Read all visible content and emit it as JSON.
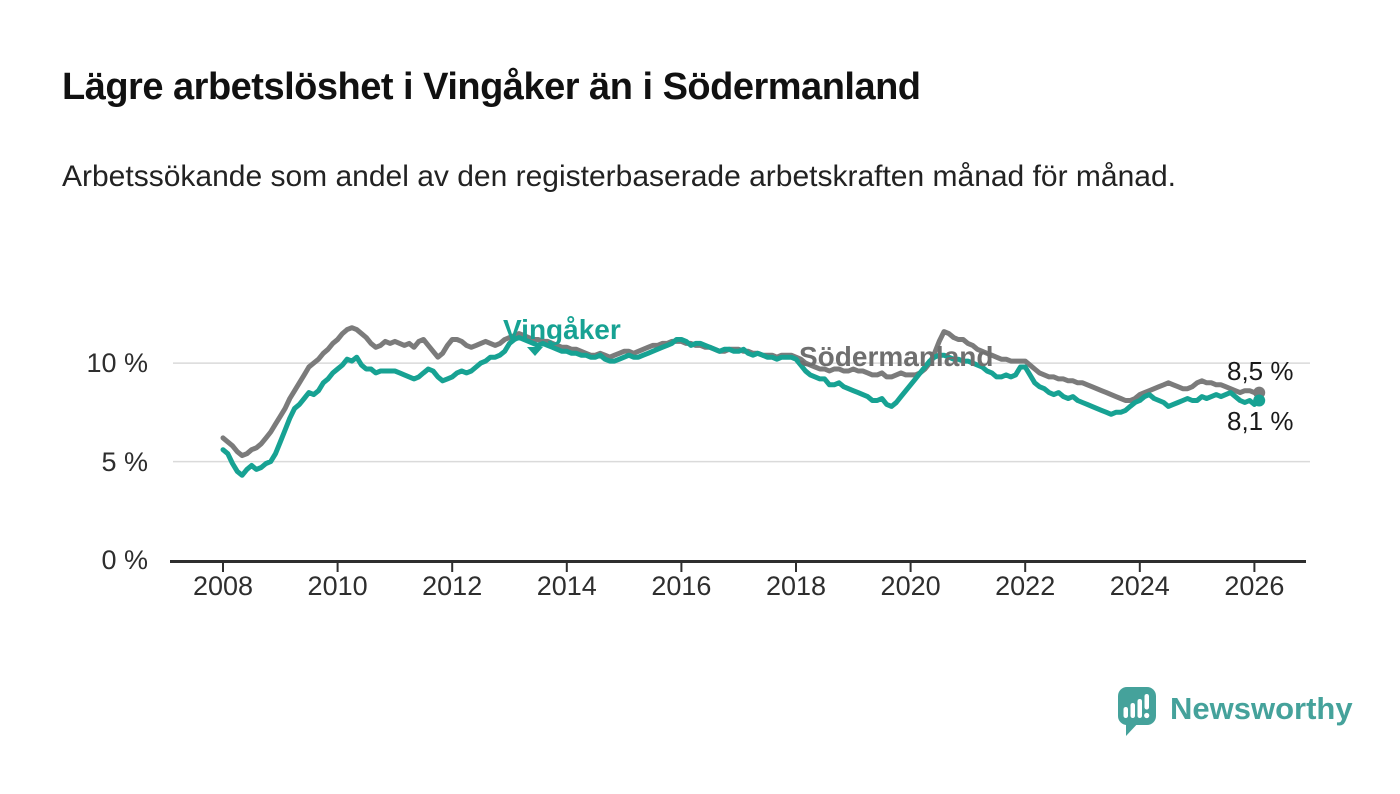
{
  "title": "Lägre arbetslöshet i Vingåker än i Södermanland",
  "subtitle": "Arbetssökande som andel av den registerbaserade arbetskraften månad för månad.",
  "colors": {
    "vingaker": "#17a293",
    "sodermanland": "#7b7b7b",
    "sodermanland_label": "#6f6f6f",
    "axis": "#2e2e2e",
    "gridline": "#dadada",
    "logo_teal": "#45a29b"
  },
  "chart_data": {
    "type": "line",
    "title": "Lägre arbetslöshet i Vingåker än i Södermanland",
    "subtitle": "Arbetssökande som andel av den registerbaserade arbetskraften månad för månad.",
    "xlabel": "",
    "ylabel": "",
    "x_start": 2008.0,
    "x_step_years": 0.0833333,
    "x_unit": "year (monthly data)",
    "xticks": [
      2008,
      2010,
      2012,
      2014,
      2016,
      2018,
      2020,
      2022,
      2024,
      2026
    ],
    "ytick_values": [
      0,
      5,
      10
    ],
    "yticks": [
      "0 %",
      "5 %",
      "10 %"
    ],
    "ylim": [
      0,
      13.4
    ],
    "grid": "horizontal-only",
    "legend_position": "inline-labels-on-chart",
    "series": [
      {
        "name": "Vingåker",
        "color": "#17a293",
        "end_label": "8,1 %",
        "end_value": 8.1,
        "values": [
          5.6,
          5.4,
          4.9,
          4.5,
          4.3,
          4.6,
          4.8,
          4.6,
          4.7,
          4.9,
          5.0,
          5.4,
          6.0,
          6.6,
          7.2,
          7.7,
          7.9,
          8.2,
          8.5,
          8.4,
          8.6,
          9.0,
          9.2,
          9.5,
          9.7,
          9.9,
          10.2,
          10.1,
          10.3,
          9.9,
          9.7,
          9.7,
          9.5,
          9.6,
          9.6,
          9.6,
          9.6,
          9.5,
          9.4,
          9.3,
          9.2,
          9.3,
          9.5,
          9.7,
          9.6,
          9.3,
          9.1,
          9.2,
          9.3,
          9.5,
          9.6,
          9.5,
          9.6,
          9.8,
          10.0,
          10.1,
          10.3,
          10.3,
          10.4,
          10.6,
          11.0,
          11.2,
          11.3,
          11.2,
          11.1,
          11.0,
          10.9,
          11.0,
          10.9,
          10.8,
          10.7,
          10.6,
          10.6,
          10.5,
          10.5,
          10.4,
          10.4,
          10.3,
          10.3,
          10.4,
          10.2,
          10.1,
          10.1,
          10.2,
          10.3,
          10.4,
          10.3,
          10.3,
          10.4,
          10.5,
          10.6,
          10.7,
          10.8,
          10.9,
          11.0,
          11.2,
          11.2,
          11.1,
          10.9,
          11.0,
          11.0,
          10.9,
          10.8,
          10.7,
          10.6,
          10.7,
          10.7,
          10.6,
          10.6,
          10.7,
          10.5,
          10.4,
          10.5,
          10.4,
          10.3,
          10.3,
          10.2,
          10.3,
          10.3,
          10.3,
          10.2,
          9.9,
          9.6,
          9.4,
          9.3,
          9.2,
          9.2,
          8.9,
          8.9,
          9.0,
          8.8,
          8.7,
          8.6,
          8.5,
          8.4,
          8.3,
          8.1,
          8.1,
          8.2,
          7.9,
          7.8,
          8.0,
          8.3,
          8.6,
          8.9,
          9.2,
          9.5,
          9.8,
          10.1,
          10.3,
          10.4,
          10.4,
          10.3,
          10.2,
          10.2,
          10.1,
          10.1,
          10.0,
          9.9,
          9.8,
          9.6,
          9.5,
          9.3,
          9.3,
          9.4,
          9.3,
          9.4,
          9.8,
          9.8,
          9.4,
          9.0,
          8.8,
          8.7,
          8.5,
          8.4,
          8.5,
          8.3,
          8.2,
          8.3,
          8.1,
          8.0,
          7.9,
          7.8,
          7.7,
          7.6,
          7.5,
          7.4,
          7.5,
          7.5,
          7.6,
          7.8,
          8.0,
          8.1,
          8.3,
          8.4,
          8.2,
          8.1,
          8.0,
          7.8,
          7.9,
          8.0,
          8.1,
          8.2,
          8.1,
          8.1,
          8.3,
          8.2,
          8.3,
          8.4,
          8.3,
          8.4,
          8.5,
          8.3,
          8.1,
          8.0,
          8.1,
          7.9,
          8.1
        ]
      },
      {
        "name": "Södermanland",
        "color": "#7b7b7b",
        "end_label": "8,5 %",
        "end_value": 8.5,
        "values": [
          6.2,
          6.0,
          5.8,
          5.5,
          5.3,
          5.4,
          5.6,
          5.7,
          5.9,
          6.2,
          6.5,
          6.9,
          7.3,
          7.7,
          8.2,
          8.6,
          9.0,
          9.4,
          9.8,
          10.0,
          10.2,
          10.5,
          10.7,
          11.0,
          11.2,
          11.5,
          11.7,
          11.8,
          11.7,
          11.5,
          11.3,
          11.0,
          10.8,
          10.9,
          11.1,
          11.0,
          11.1,
          11.0,
          10.9,
          11.0,
          10.8,
          11.1,
          11.2,
          10.9,
          10.6,
          10.3,
          10.5,
          10.9,
          11.2,
          11.2,
          11.1,
          10.9,
          10.8,
          10.9,
          11.0,
          11.1,
          11.0,
          10.9,
          11.0,
          11.2,
          11.3,
          11.4,
          11.5,
          11.4,
          11.3,
          11.2,
          11.2,
          11.1,
          11.1,
          11.0,
          10.9,
          10.8,
          10.8,
          10.7,
          10.7,
          10.6,
          10.5,
          10.4,
          10.4,
          10.5,
          10.4,
          10.3,
          10.4,
          10.5,
          10.6,
          10.6,
          10.5,
          10.6,
          10.7,
          10.8,
          10.9,
          10.9,
          11.0,
          11.0,
          11.1,
          11.1,
          11.1,
          11.0,
          11.0,
          10.9,
          10.9,
          10.8,
          10.8,
          10.7,
          10.6,
          10.6,
          10.7,
          10.7,
          10.7,
          10.6,
          10.6,
          10.5,
          10.5,
          10.4,
          10.4,
          10.4,
          10.3,
          10.4,
          10.4,
          10.4,
          10.3,
          10.2,
          10.0,
          9.9,
          9.8,
          9.7,
          9.7,
          9.6,
          9.7,
          9.7,
          9.6,
          9.6,
          9.7,
          9.6,
          9.6,
          9.5,
          9.4,
          9.4,
          9.5,
          9.3,
          9.3,
          9.4,
          9.5,
          9.4,
          9.4,
          9.4,
          9.5,
          9.7,
          10.0,
          10.5,
          11.1,
          11.6,
          11.5,
          11.3,
          11.2,
          11.2,
          11.0,
          10.9,
          10.7,
          10.6,
          10.5,
          10.4,
          10.3,
          10.2,
          10.2,
          10.1,
          10.1,
          10.1,
          10.1,
          9.9,
          9.7,
          9.5,
          9.4,
          9.3,
          9.3,
          9.2,
          9.2,
          9.1,
          9.1,
          9.0,
          9.0,
          8.9,
          8.8,
          8.7,
          8.6,
          8.5,
          8.4,
          8.3,
          8.2,
          8.1,
          8.1,
          8.2,
          8.4,
          8.5,
          8.6,
          8.7,
          8.8,
          8.9,
          9.0,
          8.9,
          8.8,
          8.7,
          8.7,
          8.8,
          9.0,
          9.1,
          9.0,
          9.0,
          8.9,
          8.9,
          8.8,
          8.7,
          8.6,
          8.5,
          8.6,
          8.6,
          8.5,
          8.5
        ]
      }
    ]
  },
  "branding": {
    "logo_text": "Newsworthy",
    "logo_icon": "speech-bubble-bar-chart-exclamation"
  }
}
